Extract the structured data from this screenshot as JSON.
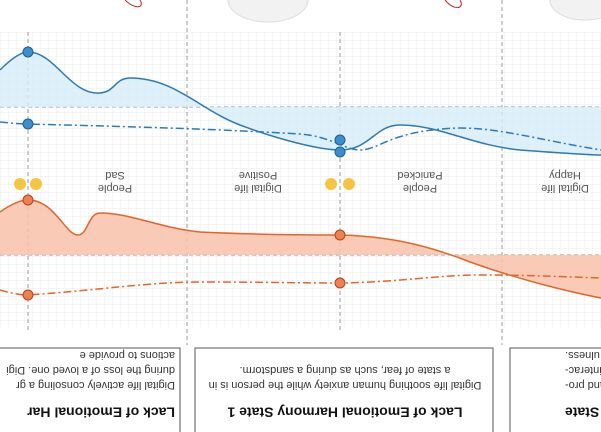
{
  "labels": [
    {
      "top": "People",
      "bottom": "Sad"
    },
    {
      "top": "Digital life",
      "bottom": "Positive"
    },
    {
      "top": "People",
      "bottom": "Panicked"
    },
    {
      "top": "Digital life",
      "bottom": "Happy"
    }
  ],
  "panels": [
    {
      "title": "Lack of Emotional Har",
      "lines": [
        "Digital life actively consoling a gr",
        "during the loss of a loved one. Digi",
        "actions to provide e"
      ]
    },
    {
      "title": "Lack of Emotional Harmony State 1",
      "lines": [
        "Digital life soothing human anxiety while the person is in",
        "a state of fear, such as during a sandstorm."
      ]
    },
    {
      "title": "e State",
      "lines": [
        "ositive and pro-",
        "n intense interac-",
        "ulness."
      ]
    }
  ]
}
